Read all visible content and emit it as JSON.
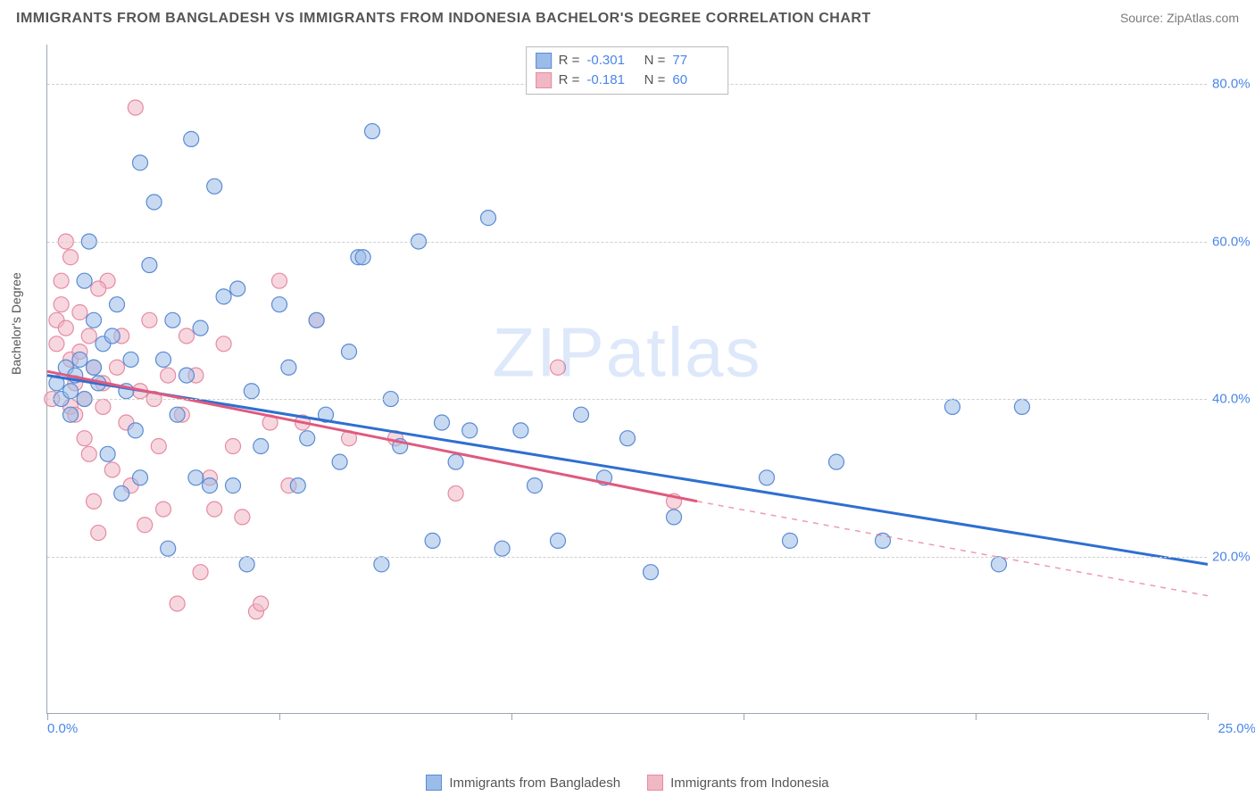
{
  "header": {
    "title": "IMMIGRANTS FROM BANGLADESH VS IMMIGRANTS FROM INDONESIA BACHELOR'S DEGREE CORRELATION CHART",
    "source_prefix": "Source: ",
    "source_name": "ZipAtlas.com"
  },
  "chart": {
    "type": "scatter",
    "ylabel": "Bachelor's Degree",
    "watermark": "ZIPatlas",
    "xlim": [
      0,
      25
    ],
    "ylim": [
      0,
      85
    ],
    "x_ticks": [
      0,
      5,
      10,
      15,
      20,
      25
    ],
    "x_tick_labels_shown": {
      "0": "0.0%",
      "25": "25.0%"
    },
    "y_gridlines": [
      20,
      40,
      60,
      80
    ],
    "y_tick_labels": {
      "20": "20.0%",
      "40": "40.0%",
      "60": "60.0%",
      "80": "80.0%"
    },
    "background_color": "#ffffff",
    "grid_color": "#cfcfcf",
    "axis_color": "#9aa6b2",
    "tick_label_color": "#4a86e8",
    "marker_radius": 8.5,
    "marker_opacity": 0.55,
    "series": [
      {
        "name": "Immigrants from Bangladesh",
        "fill_color": "#9bbce8",
        "stroke_color": "#5a8bd4",
        "R": "-0.301",
        "N": "77",
        "trend": {
          "x1": 0,
          "y1": 43,
          "x2": 25,
          "y2": 19,
          "color": "#2e6fd1",
          "width": 3,
          "dash_extent_x": 25
        },
        "points": [
          [
            0.2,
            42
          ],
          [
            0.3,
            40
          ],
          [
            0.4,
            44
          ],
          [
            0.5,
            41
          ],
          [
            0.5,
            38
          ],
          [
            0.6,
            43
          ],
          [
            0.7,
            45
          ],
          [
            0.8,
            40
          ],
          [
            0.8,
            55
          ],
          [
            0.9,
            60
          ],
          [
            1.0,
            50
          ],
          [
            1.0,
            44
          ],
          [
            1.1,
            42
          ],
          [
            1.2,
            47
          ],
          [
            1.3,
            33
          ],
          [
            1.4,
            48
          ],
          [
            1.5,
            52
          ],
          [
            1.6,
            28
          ],
          [
            1.7,
            41
          ],
          [
            1.8,
            45
          ],
          [
            2.0,
            30
          ],
          [
            2.0,
            70
          ],
          [
            2.2,
            57
          ],
          [
            2.3,
            65
          ],
          [
            2.5,
            45
          ],
          [
            2.6,
            21
          ],
          [
            2.8,
            38
          ],
          [
            3.0,
            43
          ],
          [
            3.1,
            73
          ],
          [
            3.2,
            30
          ],
          [
            3.3,
            49
          ],
          [
            3.5,
            29
          ],
          [
            3.6,
            67
          ],
          [
            3.8,
            53
          ],
          [
            4.0,
            29
          ],
          [
            4.3,
            19
          ],
          [
            4.4,
            41
          ],
          [
            4.6,
            34
          ],
          [
            5.0,
            52
          ],
          [
            5.2,
            44
          ],
          [
            5.4,
            29
          ],
          [
            5.6,
            35
          ],
          [
            5.8,
            50
          ],
          [
            6.0,
            38
          ],
          [
            6.3,
            32
          ],
          [
            6.5,
            46
          ],
          [
            6.7,
            58
          ],
          [
            7.0,
            74
          ],
          [
            7.2,
            19
          ],
          [
            7.4,
            40
          ],
          [
            7.6,
            34
          ],
          [
            8.0,
            60
          ],
          [
            8.3,
            22
          ],
          [
            8.5,
            37
          ],
          [
            8.8,
            32
          ],
          [
            9.1,
            36
          ],
          [
            9.5,
            63
          ],
          [
            9.8,
            21
          ],
          [
            10.2,
            36
          ],
          [
            10.5,
            29
          ],
          [
            11.0,
            22
          ],
          [
            11.5,
            38
          ],
          [
            12.0,
            30
          ],
          [
            12.5,
            35
          ],
          [
            13.0,
            18
          ],
          [
            13.5,
            25
          ],
          [
            15.5,
            30
          ],
          [
            16.0,
            22
          ],
          [
            17.0,
            32
          ],
          [
            18.0,
            22
          ],
          [
            19.5,
            39
          ],
          [
            20.5,
            19
          ],
          [
            21.0,
            39
          ],
          [
            6.8,
            58
          ],
          [
            4.1,
            54
          ],
          [
            2.7,
            50
          ],
          [
            1.9,
            36
          ]
        ]
      },
      {
        "name": "Immigrants from Indonesia",
        "fill_color": "#f0b7c4",
        "stroke_color": "#e68ba2",
        "R": "-0.181",
        "N": "60",
        "trend": {
          "x1": 0,
          "y1": 43.5,
          "x2": 14,
          "y2": 27,
          "color": "#e05a7e",
          "width": 3,
          "dash_extent_x": 25,
          "dash_y2": 15
        },
        "points": [
          [
            0.1,
            40
          ],
          [
            0.2,
            47
          ],
          [
            0.2,
            50
          ],
          [
            0.3,
            52
          ],
          [
            0.3,
            55
          ],
          [
            0.4,
            49
          ],
          [
            0.4,
            60
          ],
          [
            0.5,
            39
          ],
          [
            0.5,
            45
          ],
          [
            0.5,
            58
          ],
          [
            0.6,
            38
          ],
          [
            0.6,
            42
          ],
          [
            0.7,
            46
          ],
          [
            0.7,
            51
          ],
          [
            0.8,
            40
          ],
          [
            0.8,
            35
          ],
          [
            0.9,
            48
          ],
          [
            0.9,
            33
          ],
          [
            1.0,
            44
          ],
          [
            1.0,
            27
          ],
          [
            1.1,
            23
          ],
          [
            1.2,
            39
          ],
          [
            1.2,
            42
          ],
          [
            1.3,
            55
          ],
          [
            1.4,
            31
          ],
          [
            1.5,
            44
          ],
          [
            1.6,
            48
          ],
          [
            1.7,
            37
          ],
          [
            1.8,
            29
          ],
          [
            1.9,
            77
          ],
          [
            2.0,
            41
          ],
          [
            2.1,
            24
          ],
          [
            2.2,
            50
          ],
          [
            2.3,
            40
          ],
          [
            2.4,
            34
          ],
          [
            2.5,
            26
          ],
          [
            2.6,
            43
          ],
          [
            2.8,
            14
          ],
          [
            2.9,
            38
          ],
          [
            3.0,
            48
          ],
          [
            3.2,
            43
          ],
          [
            3.3,
            18
          ],
          [
            3.5,
            30
          ],
          [
            3.6,
            26
          ],
          [
            3.8,
            47
          ],
          [
            4.0,
            34
          ],
          [
            4.2,
            25
          ],
          [
            4.5,
            13
          ],
          [
            4.6,
            14
          ],
          [
            4.8,
            37
          ],
          [
            5.0,
            55
          ],
          [
            5.2,
            29
          ],
          [
            5.5,
            37
          ],
          [
            5.8,
            50
          ],
          [
            6.5,
            35
          ],
          [
            7.5,
            35
          ],
          [
            8.8,
            28
          ],
          [
            11.0,
            44
          ],
          [
            13.5,
            27
          ],
          [
            1.1,
            54
          ]
        ]
      }
    ],
    "legend_top_position": "top-center",
    "legend_bottom_items": [
      {
        "label": "Immigrants from Bangladesh",
        "fill": "#9bbce8",
        "stroke": "#5a8bd4"
      },
      {
        "label": "Immigrants from Indonesia",
        "fill": "#f0b7c4",
        "stroke": "#e68ba2"
      }
    ]
  }
}
